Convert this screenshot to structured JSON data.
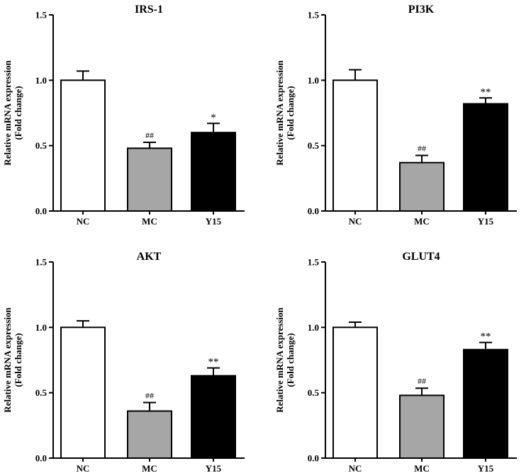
{
  "chart_data": [
    {
      "type": "bar",
      "title": "IRS-1",
      "ylabel_line1": "Relative mRNA expression",
      "ylabel_line2": "(Fold change)",
      "categories": [
        "NC",
        "MC",
        "Y15"
      ],
      "values": [
        1.0,
        0.48,
        0.6
      ],
      "errors": [
        0.07,
        0.045,
        0.07
      ],
      "significance": [
        "",
        "##",
        "*"
      ],
      "fills": [
        "#ffffff",
        "#a6a6a6",
        "#000000"
      ],
      "ylim": [
        0,
        1.5
      ],
      "yticks": [
        "0.0",
        "0.5",
        "1.0",
        "1.5"
      ],
      "ytick_values": [
        0,
        0.5,
        1.0,
        1.5
      ]
    },
    {
      "type": "bar",
      "title": "PI3K",
      "ylabel_line1": "Relative mRNA expression",
      "ylabel_line2": "(Fold change)",
      "categories": [
        "NC",
        "MC",
        "Y15"
      ],
      "values": [
        1.0,
        0.37,
        0.82
      ],
      "errors": [
        0.08,
        0.055,
        0.045
      ],
      "significance": [
        "",
        "##",
        "**"
      ],
      "fills": [
        "#ffffff",
        "#a6a6a6",
        "#000000"
      ],
      "ylim": [
        0,
        1.5
      ],
      "yticks": [
        "0.0",
        "0.5",
        "1.0",
        "1.5"
      ],
      "ytick_values": [
        0,
        0.5,
        1.0,
        1.5
      ]
    },
    {
      "type": "bar",
      "title": "AKT",
      "ylabel_line1": "Relative mRNA expression",
      "ylabel_line2": "(Fold change)",
      "categories": [
        "NC",
        "MC",
        "Y15"
      ],
      "values": [
        1.0,
        0.36,
        0.63
      ],
      "errors": [
        0.05,
        0.065,
        0.06
      ],
      "significance": [
        "",
        "##",
        "**"
      ],
      "fills": [
        "#ffffff",
        "#a6a6a6",
        "#000000"
      ],
      "ylim": [
        0,
        1.5
      ],
      "yticks": [
        "0.0",
        "0.5",
        "1.0",
        "1.5"
      ],
      "ytick_values": [
        0,
        0.5,
        1.0,
        1.5
      ]
    },
    {
      "type": "bar",
      "title": "GLUT4",
      "ylabel_line1": "Relative mRNA expression",
      "ylabel_line2": "(Fold change)",
      "categories": [
        "NC",
        "MC",
        "Y15"
      ],
      "values": [
        1.0,
        0.48,
        0.83
      ],
      "errors": [
        0.04,
        0.055,
        0.055
      ],
      "significance": [
        "",
        "##",
        "**"
      ],
      "fills": [
        "#ffffff",
        "#a6a6a6",
        "#000000"
      ],
      "ylim": [
        0,
        1.5
      ],
      "yticks": [
        "0.0",
        "0.5",
        "1.0",
        "1.5"
      ],
      "ytick_values": [
        0,
        0.5,
        1.0,
        1.5
      ]
    }
  ]
}
